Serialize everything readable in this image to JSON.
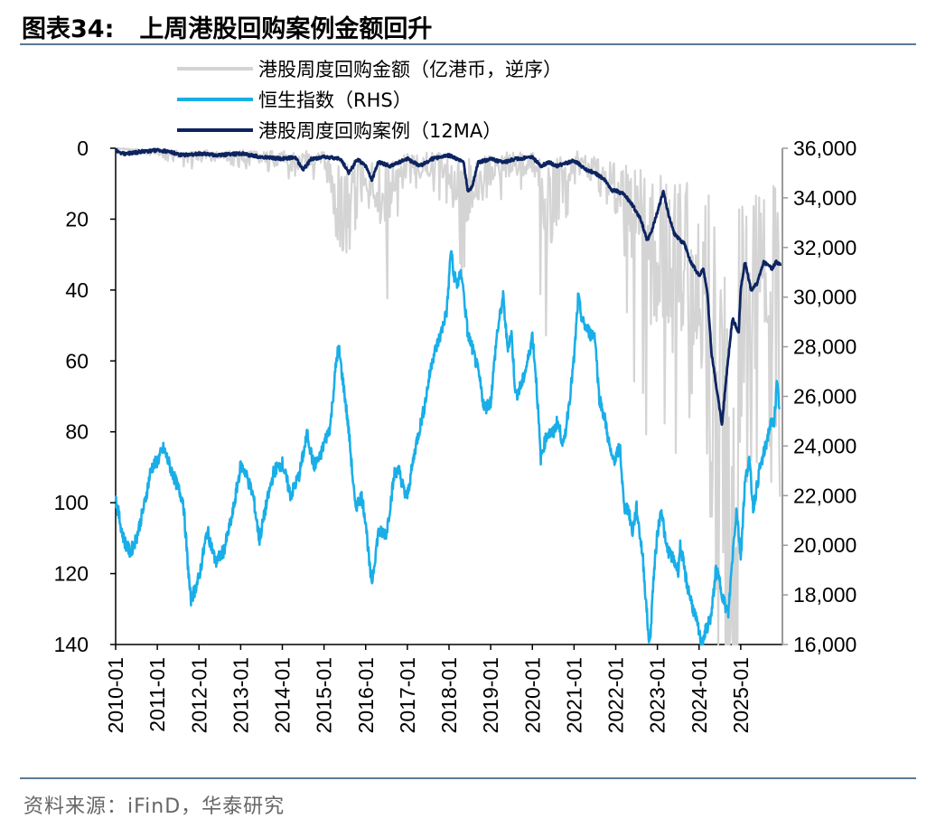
{
  "header": {
    "label": "图表34:",
    "title": "上周港股回购案例金额回升"
  },
  "footer": {
    "source": "资料来源：iFinD，华泰研究"
  },
  "colors": {
    "repurchase_amount": "#d4d4d4",
    "hsi": "#19aee8",
    "repurchase_cases": "#0d2460",
    "axis": "#000000",
    "right_axis": "#9a9a9a",
    "rule": "#5a7a96"
  },
  "chart_data": {
    "type": "line",
    "title": "上周港股回购案例金额回升",
    "x_range": [
      2010.0,
      2026.0
    ],
    "x_tick_labels": [
      "2010-01",
      "2011-01",
      "2012-01",
      "2013-01",
      "2014-01",
      "2015-01",
      "2016-01",
      "2017-01",
      "2018-01",
      "2019-01",
      "2020-01",
      "2021-01",
      "2022-01",
      "2023-01",
      "2024-01",
      "2025-01"
    ],
    "y_left": {
      "min": 0,
      "max": 140,
      "step": 20,
      "inverted": true,
      "tick_labels": [
        "0",
        "20",
        "40",
        "60",
        "80",
        "100",
        "120",
        "140"
      ]
    },
    "y_right": {
      "min": 16000,
      "max": 36000,
      "step": 2000,
      "tick_labels": [
        "16,000",
        "18,000",
        "20,000",
        "22,000",
        "24,000",
        "26,000",
        "28,000",
        "30,000",
        "32,000",
        "34,000",
        "36,000"
      ]
    },
    "legend": {
      "position": "top-left"
    },
    "series": [
      {
        "name": "港股周度回购金额（亿港币，逆序）",
        "axis": "left",
        "style": "spiky-weekly",
        "points": [
          [
            2010.0,
            0
          ],
          [
            2011.0,
            1
          ],
          [
            2012.0,
            2
          ],
          [
            2013.0,
            2
          ],
          [
            2014.0,
            3
          ],
          [
            2015.0,
            3
          ],
          [
            2015.5,
            20
          ],
          [
            2016.0,
            6
          ],
          [
            2016.5,
            15
          ],
          [
            2017.0,
            4
          ],
          [
            2018.0,
            5
          ],
          [
            2018.2,
            14
          ],
          [
            2019.0,
            5
          ],
          [
            2020.0,
            4
          ],
          [
            2020.3,
            18
          ],
          [
            2021.0,
            3
          ],
          [
            2022.0,
            10
          ],
          [
            2022.5,
            22
          ],
          [
            2023.0,
            30
          ],
          [
            2023.5,
            35
          ],
          [
            2024.0,
            30
          ],
          [
            2024.3,
            60
          ],
          [
            2024.5,
            75
          ],
          [
            2024.7,
            110
          ],
          [
            2024.9,
            80
          ],
          [
            2025.0,
            55
          ],
          [
            2025.3,
            48
          ],
          [
            2025.6,
            30
          ],
          [
            2025.8,
            42
          ],
          [
            2025.95,
            50
          ]
        ]
      },
      {
        "name": "恒生指数（RHS）",
        "axis": "right",
        "style": "solid",
        "points": [
          [
            2010.0,
            21900
          ],
          [
            2010.1,
            21000
          ],
          [
            2010.2,
            20200
          ],
          [
            2010.35,
            19700
          ],
          [
            2010.5,
            20300
          ],
          [
            2010.7,
            21700
          ],
          [
            2010.85,
            23100
          ],
          [
            2011.0,
            23400
          ],
          [
            2011.15,
            23900
          ],
          [
            2011.3,
            23200
          ],
          [
            2011.5,
            22300
          ],
          [
            2011.62,
            21800
          ],
          [
            2011.72,
            19500
          ],
          [
            2011.8,
            17800
          ],
          [
            2011.9,
            18200
          ],
          [
            2012.0,
            18700
          ],
          [
            2012.2,
            20600
          ],
          [
            2012.4,
            19300
          ],
          [
            2012.6,
            19800
          ],
          [
            2012.8,
            21200
          ],
          [
            2013.0,
            23200
          ],
          [
            2013.1,
            23000
          ],
          [
            2013.3,
            22000
          ],
          [
            2013.45,
            20200
          ],
          [
            2013.6,
            21500
          ],
          [
            2013.8,
            23000
          ],
          [
            2014.0,
            23300
          ],
          [
            2014.2,
            22000
          ],
          [
            2014.4,
            22800
          ],
          [
            2014.6,
            24500
          ],
          [
            2014.75,
            23200
          ],
          [
            2014.9,
            23500
          ],
          [
            2015.0,
            24100
          ],
          [
            2015.15,
            24800
          ],
          [
            2015.3,
            27500
          ],
          [
            2015.35,
            28000
          ],
          [
            2015.5,
            26000
          ],
          [
            2015.6,
            24500
          ],
          [
            2015.75,
            21500
          ],
          [
            2015.9,
            22000
          ],
          [
            2016.0,
            21000
          ],
          [
            2016.1,
            19000
          ],
          [
            2016.15,
            18500
          ],
          [
            2016.3,
            20500
          ],
          [
            2016.5,
            20500
          ],
          [
            2016.7,
            23000
          ],
          [
            2016.8,
            23000
          ],
          [
            2016.95,
            22000
          ],
          [
            2017.0,
            22000
          ],
          [
            2017.2,
            24000
          ],
          [
            2017.4,
            25500
          ],
          [
            2017.6,
            27500
          ],
          [
            2017.8,
            28500
          ],
          [
            2017.95,
            29500
          ],
          [
            2018.05,
            32000
          ],
          [
            2018.1,
            31000
          ],
          [
            2018.2,
            30500
          ],
          [
            2018.3,
            31000
          ],
          [
            2018.45,
            28500
          ],
          [
            2018.55,
            28000
          ],
          [
            2018.7,
            27000
          ],
          [
            2018.85,
            25500
          ],
          [
            2019.0,
            25800
          ],
          [
            2019.15,
            28500
          ],
          [
            2019.3,
            30000
          ],
          [
            2019.4,
            28000
          ],
          [
            2019.5,
            28500
          ],
          [
            2019.6,
            26000
          ],
          [
            2019.75,
            26500
          ],
          [
            2019.9,
            27500
          ],
          [
            2020.0,
            28500
          ],
          [
            2020.1,
            26500
          ],
          [
            2020.2,
            23500
          ],
          [
            2020.35,
            24500
          ],
          [
            2020.5,
            24500
          ],
          [
            2020.6,
            25000
          ],
          [
            2020.75,
            24000
          ],
          [
            2020.9,
            26000
          ],
          [
            2021.0,
            27500
          ],
          [
            2021.1,
            30000
          ],
          [
            2021.2,
            29000
          ],
          [
            2021.4,
            28500
          ],
          [
            2021.5,
            28500
          ],
          [
            2021.6,
            26000
          ],
          [
            2021.75,
            25000
          ],
          [
            2021.9,
            23500
          ],
          [
            2022.0,
            23500
          ],
          [
            2022.1,
            24000
          ],
          [
            2022.2,
            21500
          ],
          [
            2022.3,
            21500
          ],
          [
            2022.4,
            20500
          ],
          [
            2022.5,
            21500
          ],
          [
            2022.65,
            19500
          ],
          [
            2022.78,
            16500
          ],
          [
            2022.82,
            16000
          ],
          [
            2022.9,
            18500
          ],
          [
            2023.0,
            20500
          ],
          [
            2023.1,
            21500
          ],
          [
            2023.2,
            20000
          ],
          [
            2023.35,
            19500
          ],
          [
            2023.5,
            19000
          ],
          [
            2023.55,
            20000
          ],
          [
            2023.7,
            18500
          ],
          [
            2023.85,
            17500
          ],
          [
            2024.0,
            16500
          ],
          [
            2024.05,
            16000
          ],
          [
            2024.15,
            16500
          ],
          [
            2024.3,
            17200
          ],
          [
            2024.4,
            19000
          ],
          [
            2024.5,
            18500
          ],
          [
            2024.6,
            17700
          ],
          [
            2024.7,
            17200
          ],
          [
            2024.8,
            19500
          ],
          [
            2024.9,
            21500
          ],
          [
            2025.0,
            19500
          ],
          [
            2025.1,
            22500
          ],
          [
            2025.2,
            23500
          ],
          [
            2025.3,
            21500
          ],
          [
            2025.45,
            23000
          ],
          [
            2025.6,
            24000
          ],
          [
            2025.7,
            24800
          ],
          [
            2025.8,
            25000
          ],
          [
            2025.87,
            26500
          ],
          [
            2025.93,
            25500
          ]
        ]
      },
      {
        "name": "港股周度回购案例（12MA）",
        "axis": "left",
        "style": "solid",
        "points": [
          [
            2010.0,
            0
          ],
          [
            2010.1,
            1.5
          ],
          [
            2010.3,
            1.5
          ],
          [
            2010.6,
            1
          ],
          [
            2011.0,
            0.5
          ],
          [
            2011.3,
            1
          ],
          [
            2011.6,
            2
          ],
          [
            2012.0,
            1.5
          ],
          [
            2012.5,
            2
          ],
          [
            2013.0,
            1.5
          ],
          [
            2013.5,
            2.5
          ],
          [
            2014.0,
            3
          ],
          [
            2014.3,
            2.5
          ],
          [
            2014.5,
            6
          ],
          [
            2014.7,
            3
          ],
          [
            2015.0,
            2.5
          ],
          [
            2015.4,
            3
          ],
          [
            2015.6,
            7
          ],
          [
            2015.8,
            3
          ],
          [
            2016.0,
            5
          ],
          [
            2016.15,
            9
          ],
          [
            2016.3,
            4
          ],
          [
            2016.6,
            5
          ],
          [
            2017.0,
            3
          ],
          [
            2017.3,
            5
          ],
          [
            2017.6,
            3
          ],
          [
            2018.0,
            2
          ],
          [
            2018.35,
            4
          ],
          [
            2018.45,
            12
          ],
          [
            2018.55,
            11
          ],
          [
            2018.7,
            4
          ],
          [
            2019.0,
            3
          ],
          [
            2019.3,
            4
          ],
          [
            2019.6,
            3
          ],
          [
            2020.0,
            2.5
          ],
          [
            2020.2,
            5
          ],
          [
            2020.4,
            4
          ],
          [
            2020.6,
            5
          ],
          [
            2021.0,
            3.5
          ],
          [
            2021.3,
            6
          ],
          [
            2021.5,
            7
          ],
          [
            2021.75,
            9
          ],
          [
            2021.9,
            12
          ],
          [
            2022.0,
            12
          ],
          [
            2022.2,
            13
          ],
          [
            2022.4,
            16
          ],
          [
            2022.6,
            20
          ],
          [
            2022.75,
            26
          ],
          [
            2022.85,
            24
          ],
          [
            2023.0,
            18
          ],
          [
            2023.15,
            12
          ],
          [
            2023.25,
            18
          ],
          [
            2023.4,
            24
          ],
          [
            2023.55,
            26
          ],
          [
            2023.65,
            27
          ],
          [
            2023.8,
            32
          ],
          [
            2024.0,
            36
          ],
          [
            2024.1,
            34
          ],
          [
            2024.2,
            41
          ],
          [
            2024.3,
            58
          ],
          [
            2024.45,
            70
          ],
          [
            2024.55,
            78
          ],
          [
            2024.65,
            65
          ],
          [
            2024.8,
            48
          ],
          [
            2024.95,
            52
          ],
          [
            2025.0,
            40
          ],
          [
            2025.1,
            32
          ],
          [
            2025.25,
            40
          ],
          [
            2025.4,
            38
          ],
          [
            2025.55,
            32
          ],
          [
            2025.75,
            34
          ],
          [
            2025.85,
            32
          ],
          [
            2025.95,
            33
          ]
        ]
      }
    ]
  }
}
